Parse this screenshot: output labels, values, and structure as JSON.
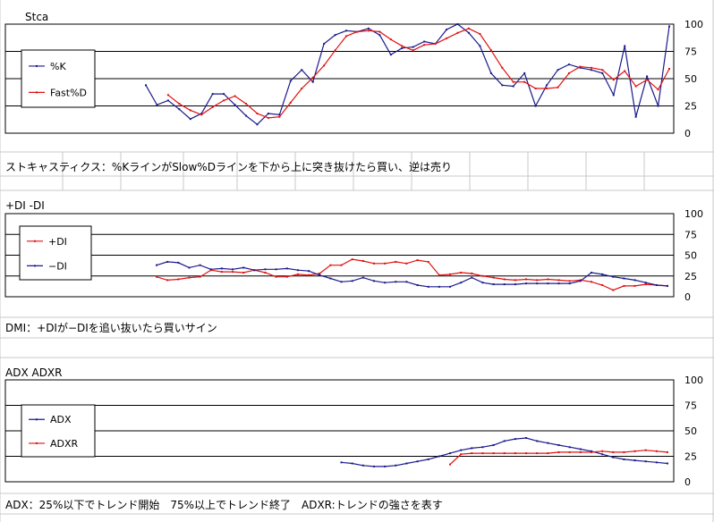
{
  "colors": {
    "k_line": "#1a1a8c",
    "d_line": "#e01010",
    "grid_line": "#000000",
    "sheet_grid": "#c8c8c8"
  },
  "y_ticks": [
    "100",
    "75",
    "50",
    "25",
    "0"
  ],
  "notes": {
    "stoch": "ストキャスティクス：%KラインがSlow%Dラインを下から上に突き抜けたら買い、逆は売り",
    "dmi": "DMI：+DIが−DIを追い抜いたら買いサイン",
    "adx": "ADX：25%以下でトレンド開始　75%以上でトレンド終了　ADXR:トレンドの強さを表す"
  },
  "chart_data": [
    {
      "type": "line",
      "title": "Stca",
      "ylim": [
        0,
        100
      ],
      "yticks": [
        0,
        25,
        50,
        75,
        100
      ],
      "legend": "left",
      "x": [
        1,
        2,
        3,
        4,
        5,
        6,
        7,
        8,
        9,
        10,
        11,
        12,
        13,
        14,
        15,
        16,
        17,
        18,
        19,
        20,
        21,
        22,
        23,
        24,
        25,
        26,
        27,
        28,
        29,
        30,
        31,
        32,
        33,
        34,
        35,
        36,
        37,
        38,
        39,
        40,
        41,
        42,
        43,
        44,
        45,
        46,
        47,
        48
      ],
      "series": [
        {
          "name": "%K",
          "color": "#1a1a8c",
          "values": [
            44,
            26,
            30,
            22,
            13,
            18,
            36,
            36,
            26,
            16,
            8,
            18,
            17,
            48,
            58,
            47,
            82,
            90,
            94,
            93,
            96,
            90,
            72,
            78,
            79,
            84,
            82,
            95,
            100,
            92,
            80,
            55,
            44,
            43,
            55,
            25,
            44,
            58,
            63,
            60,
            58,
            55,
            35,
            80,
            15,
            52,
            25,
            98
          ]
        },
        {
          "name": "Fast%D",
          "color": "#e01010",
          "values": [
            null,
            null,
            35,
            27,
            21,
            17,
            24,
            30,
            34,
            27,
            18,
            14,
            15,
            28,
            41,
            51,
            62,
            76,
            89,
            93,
            94,
            93,
            86,
            80,
            76,
            81,
            82,
            87,
            92,
            96,
            91,
            76,
            60,
            47,
            47,
            41,
            41,
            42,
            55,
            61,
            60,
            58,
            49,
            57,
            43,
            49,
            40,
            59
          ]
        }
      ]
    },
    {
      "type": "line",
      "title": "+DI -DI",
      "ylim": [
        0,
        100
      ],
      "yticks": [
        0,
        25,
        50,
        75,
        100
      ],
      "legend": "left",
      "x": [
        1,
        2,
        3,
        4,
        5,
        6,
        7,
        8,
        9,
        10,
        11,
        12,
        13,
        14,
        15,
        16,
        17,
        18,
        19,
        20,
        21,
        22,
        23,
        24,
        25,
        26,
        27,
        28,
        29,
        30,
        31,
        32,
        33,
        34,
        35,
        36,
        37,
        38,
        39,
        40,
        41,
        42,
        43,
        44,
        45,
        46,
        47,
        48
      ],
      "series": [
        {
          "name": "+DI",
          "color": "#e01010",
          "values": [
            24,
            20,
            21,
            23,
            24,
            32,
            30,
            30,
            29,
            32,
            29,
            24,
            24,
            27,
            26,
            28,
            38,
            38,
            45,
            43,
            40,
            40,
            42,
            40,
            44,
            42,
            26,
            27,
            29,
            28,
            25,
            23,
            21,
            20,
            21,
            20,
            21,
            20,
            19,
            20,
            18,
            14,
            8,
            13,
            13,
            15,
            14,
            13
          ]
        },
        {
          "name": "−DI",
          "color": "#1a1a8c",
          "values": [
            38,
            42,
            41,
            35,
            38,
            33,
            34,
            33,
            35,
            32,
            33,
            33,
            34,
            32,
            31,
            26,
            22,
            18,
            19,
            23,
            19,
            17,
            18,
            18,
            14,
            12,
            12,
            12,
            17,
            23,
            17,
            15,
            15,
            15,
            16,
            16,
            16,
            16,
            16,
            19,
            29,
            27,
            24,
            22,
            20,
            17,
            14,
            13
          ]
        }
      ]
    },
    {
      "type": "line",
      "title": "ADX ADXR",
      "ylim": [
        0,
        100
      ],
      "yticks": [
        0,
        25,
        50,
        75,
        100
      ],
      "legend": "left",
      "x": [
        1,
        2,
        3,
        4,
        5,
        6,
        7,
        8,
        9,
        10,
        11,
        12,
        13,
        14,
        15,
        16,
        17,
        18,
        19,
        20,
        21,
        22,
        23,
        24,
        25,
        26,
        27,
        28,
        29,
        30,
        31,
        32,
        33,
        34,
        35,
        36,
        37,
        38,
        39,
        40,
        41,
        42,
        43,
        44,
        45,
        46,
        47,
        48
      ],
      "series": [
        {
          "name": "ADX",
          "color": "#1a1a8c",
          "values": [
            null,
            null,
            null,
            null,
            null,
            null,
            null,
            null,
            null,
            null,
            null,
            null,
            null,
            null,
            null,
            null,
            null,
            19,
            18,
            16,
            15,
            15,
            16,
            18,
            20,
            22,
            25,
            28,
            31,
            33,
            34,
            36,
            40,
            42,
            43,
            40,
            38,
            36,
            34,
            32,
            30,
            27,
            24,
            22,
            21,
            20,
            19,
            18
          ]
        },
        {
          "name": "ADXR",
          "color": "#e01010",
          "values": [
            null,
            null,
            null,
            null,
            null,
            null,
            null,
            null,
            null,
            null,
            null,
            null,
            null,
            null,
            null,
            null,
            null,
            null,
            null,
            null,
            null,
            null,
            null,
            null,
            null,
            null,
            null,
            17,
            27,
            28,
            28,
            28,
            28,
            28,
            28,
            28,
            28,
            29,
            29,
            29,
            29,
            30,
            29,
            29,
            30,
            31,
            30,
            29
          ]
        }
      ]
    }
  ]
}
